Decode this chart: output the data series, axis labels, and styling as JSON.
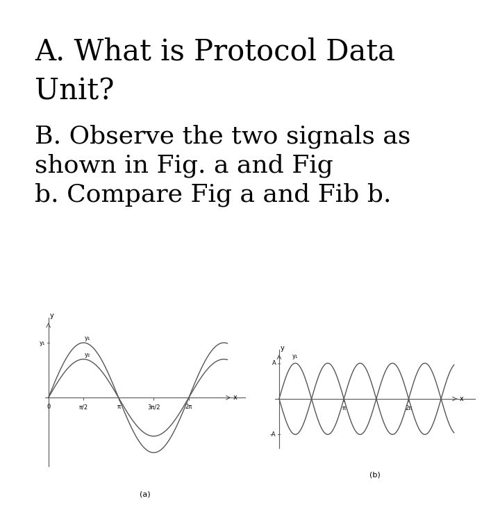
{
  "background_color": "#ffffff",
  "text_A": "A. What is Protocol Data\nUnit?",
  "text_B": "B. Observe the two signals as\nshown in Fig. a and Fig\nb. Compare Fig a and Fib b.",
  "fig_a_label": "(a)",
  "fig_b_label": "(b)",
  "text_fontsize_A": 30,
  "text_fontsize_B": 26,
  "label_fontsize": 7,
  "tick_fontsize": 6,
  "line_color": "#555555",
  "axis_color": "#555555",
  "fig_a_xlim": [
    -0.15,
    8.8
  ],
  "fig_a_ylim": [
    -1.25,
    1.45
  ],
  "fig_b_xlim": [
    -0.2,
    9.5
  ],
  "fig_b_ylim": [
    -0.55,
    0.55
  ]
}
